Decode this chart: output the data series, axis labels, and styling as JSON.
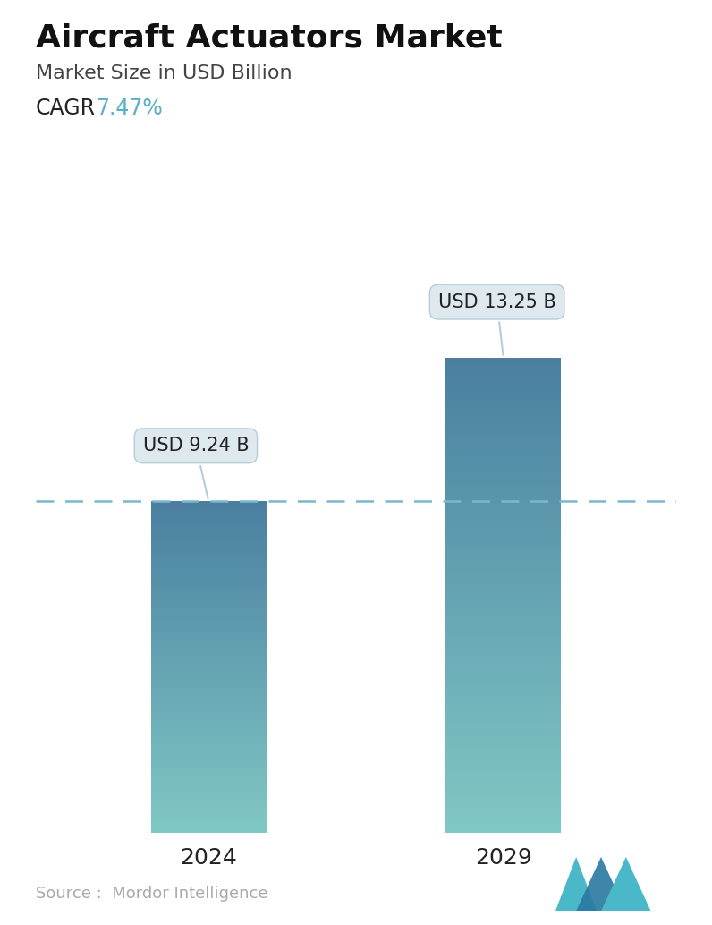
{
  "title": "Aircraft Actuators Market",
  "subtitle": "Market Size in USD Billion",
  "cagr_label": "CAGR",
  "cagr_value": "7.47%",
  "cagr_color": "#5aafc9",
  "categories": [
    "2024",
    "2029"
  ],
  "values": [
    9.24,
    13.25
  ],
  "bar_labels": [
    "USD 9.24 B",
    "USD 13.25 B"
  ],
  "bar_top_color": "#4a7fa0",
  "bar_bottom_color": "#80c8c4",
  "dashed_line_color": "#7ab8cc",
  "dashed_line_value": 9.24,
  "background_color": "#ffffff",
  "source_text": "Source :  Mordor Intelligence",
  "source_color": "#aaaaaa",
  "title_fontsize": 26,
  "subtitle_fontsize": 16,
  "cagr_fontsize": 17,
  "xlabel_fontsize": 18,
  "annotation_fontsize": 15,
  "ylim": [
    0,
    16
  ],
  "bar_width": 0.18,
  "x_positions": [
    0.27,
    0.73
  ],
  "xlim": [
    0,
    1
  ],
  "callout_facecolor": "#dde8ef",
  "callout_edgecolor": "#b8ccd8",
  "logo_color1": "#4ab8c8",
  "logo_color2": "#2878a0"
}
